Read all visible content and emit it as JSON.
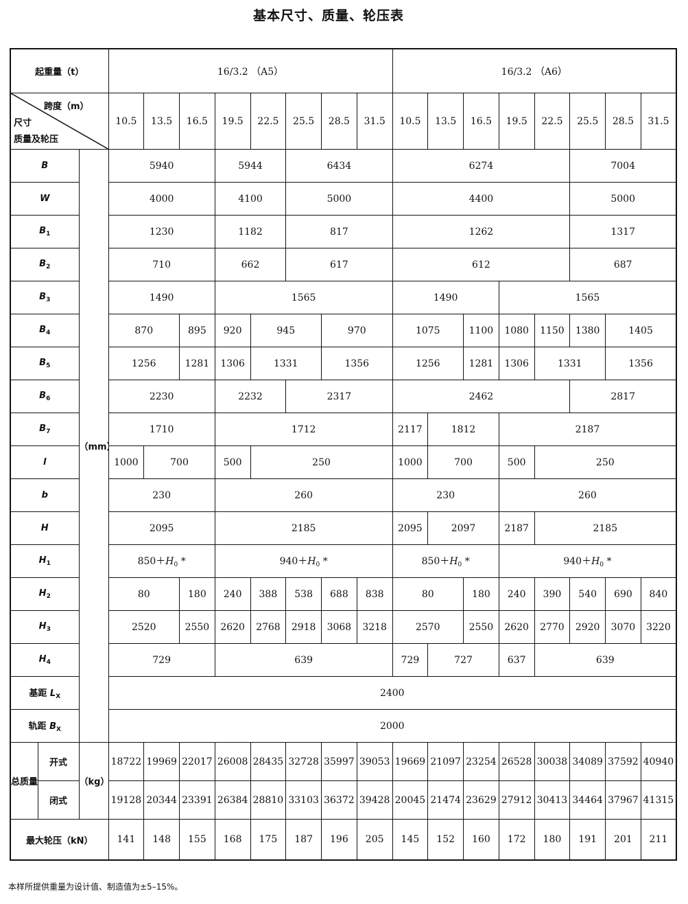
{
  "title": "基本尺寸、质量、轮压表",
  "header": {
    "capacity_label": "起重量（t）",
    "groups": [
      "16/3.2 （A5）",
      "16/3.2 （A6）"
    ],
    "span_label": "跨度（m）",
    "dim_label": "尺寸",
    "mass_label": "质量及轮压",
    "spans": [
      "10.5",
      "13.5",
      "16.5",
      "19.5",
      "22.5",
      "25.5",
      "28.5",
      "31.5",
      "10.5",
      "13.5",
      "16.5",
      "19.5",
      "22.5",
      "25.5",
      "28.5",
      "31.5"
    ]
  },
  "unit_mm": "（mm）",
  "unit_kg": "（kg）",
  "dim_rows": [
    {
      "label": {
        "sym": "B"
      },
      "cells": [
        {
          "v": "5940",
          "span": 3
        },
        {
          "v": "5944",
          "span": 2
        },
        {
          "v": "6434",
          "span": 3
        },
        {
          "v": "6274",
          "span": 5
        },
        {
          "v": "7004",
          "span": 3
        }
      ]
    },
    {
      "label": {
        "sym": "W"
      },
      "cells": [
        {
          "v": "4000",
          "span": 3
        },
        {
          "v": "4100",
          "span": 2
        },
        {
          "v": "5000",
          "span": 3
        },
        {
          "v": "4400",
          "span": 5
        },
        {
          "v": "5000",
          "span": 3
        }
      ]
    },
    {
      "label": {
        "sym": "B",
        "sub": "1"
      },
      "cells": [
        {
          "v": "1230",
          "span": 3
        },
        {
          "v": "1182",
          "span": 2
        },
        {
          "v": "817",
          "span": 3
        },
        {
          "v": "1262",
          "span": 5
        },
        {
          "v": "1317",
          "span": 3
        }
      ]
    },
    {
      "label": {
        "sym": "B",
        "sub": "2"
      },
      "cells": [
        {
          "v": "710",
          "span": 3
        },
        {
          "v": "662",
          "span": 2
        },
        {
          "v": "617",
          "span": 3
        },
        {
          "v": "612",
          "span": 5
        },
        {
          "v": "687",
          "span": 3
        }
      ]
    },
    {
      "label": {
        "sym": "B",
        "sub": "3"
      },
      "cells": [
        {
          "v": "1490",
          "span": 3
        },
        {
          "v": "1565",
          "span": 5
        },
        {
          "v": "1490",
          "span": 3
        },
        {
          "v": "1565",
          "span": 5
        }
      ]
    },
    {
      "label": {
        "sym": "B",
        "sub": "4"
      },
      "cells": [
        {
          "v": "870",
          "span": 2
        },
        {
          "v": "895",
          "span": 1
        },
        {
          "v": "920",
          "span": 1
        },
        {
          "v": "945",
          "span": 2
        },
        {
          "v": "970",
          "span": 2
        },
        {
          "v": "1075",
          "span": 2
        },
        {
          "v": "1100",
          "span": 1
        },
        {
          "v": "1080",
          "span": 1
        },
        {
          "v": "1150",
          "span": 1
        },
        {
          "v": "1380",
          "span": 1
        },
        {
          "v": "1405",
          "span": 2
        }
      ]
    },
    {
      "label": {
        "sym": "B",
        "sub": "5"
      },
      "cells": [
        {
          "v": "1256",
          "span": 2
        },
        {
          "v": "1281",
          "span": 1
        },
        {
          "v": "1306",
          "span": 1
        },
        {
          "v": "1331",
          "span": 2
        },
        {
          "v": "1356",
          "span": 2
        },
        {
          "v": "1256",
          "span": 2
        },
        {
          "v": "1281",
          "span": 1
        },
        {
          "v": "1306",
          "span": 1
        },
        {
          "v": "1331",
          "span": 2
        },
        {
          "v": "1356",
          "span": 2
        }
      ]
    },
    {
      "label": {
        "sym": "B",
        "sub": "6"
      },
      "cells": [
        {
          "v": "2230",
          "span": 3
        },
        {
          "v": "2232",
          "span": 2
        },
        {
          "v": "2317",
          "span": 3
        },
        {
          "v": "2462",
          "span": 5
        },
        {
          "v": "2817",
          "span": 3
        }
      ]
    },
    {
      "label": {
        "sym": "B",
        "sub": "7"
      },
      "cells": [
        {
          "v": "1710",
          "span": 3
        },
        {
          "v": "1712",
          "span": 5
        },
        {
          "v": "2117",
          "span": 1
        },
        {
          "v": "1812",
          "span": 2
        },
        {
          "v": "2187",
          "span": 5
        }
      ]
    },
    {
      "label": {
        "sym": "l"
      },
      "cells": [
        {
          "v": "1000",
          "span": 1
        },
        {
          "v": "700",
          "span": 2
        },
        {
          "v": "500",
          "span": 1
        },
        {
          "v": "250",
          "span": 4
        },
        {
          "v": "1000",
          "span": 1
        },
        {
          "v": "700",
          "span": 2
        },
        {
          "v": "500",
          "span": 1
        },
        {
          "v": "250",
          "span": 4
        }
      ]
    },
    {
      "label": {
        "sym": "b"
      },
      "cells": [
        {
          "v": "230",
          "span": 3
        },
        {
          "v": "260",
          "span": 5
        },
        {
          "v": "230",
          "span": 3
        },
        {
          "v": "260",
          "span": 5
        }
      ]
    },
    {
      "label": {
        "sym": "H"
      },
      "cells": [
        {
          "v": "2095",
          "span": 3
        },
        {
          "v": "2185",
          "span": 5
        },
        {
          "v": "2095",
          "span": 1
        },
        {
          "v": "2097",
          "span": 2
        },
        {
          "v": "2187",
          "span": 1
        },
        {
          "v": "2185",
          "span": 4
        }
      ]
    },
    {
      "label": {
        "sym": "H",
        "sub": "1"
      },
      "cells": [
        {
          "pre": "850＋",
          "sym": "H",
          "sub": "0",
          "post": " *",
          "span": 3
        },
        {
          "pre": "940＋",
          "sym": "H",
          "sub": "0",
          "post": " *",
          "span": 5
        },
        {
          "pre": "850＋",
          "sym": "H",
          "sub": "0",
          "post": " *",
          "span": 3
        },
        {
          "pre": "940＋",
          "sym": "H",
          "sub": "0",
          "post": " *",
          "span": 5
        }
      ]
    },
    {
      "label": {
        "sym": "H",
        "sub": "2"
      },
      "cells": [
        {
          "v": "80",
          "span": 2
        },
        {
          "v": "180",
          "span": 1
        },
        {
          "v": "240",
          "span": 1
        },
        {
          "v": "388",
          "span": 1
        },
        {
          "v": "538",
          "span": 1
        },
        {
          "v": "688",
          "span": 1
        },
        {
          "v": "838",
          "span": 1
        },
        {
          "v": "80",
          "span": 2
        },
        {
          "v": "180",
          "span": 1
        },
        {
          "v": "240",
          "span": 1
        },
        {
          "v": "390",
          "span": 1
        },
        {
          "v": "540",
          "span": 1
        },
        {
          "v": "690",
          "span": 1
        },
        {
          "v": "840",
          "span": 1
        }
      ]
    },
    {
      "label": {
        "sym": "H",
        "sub": "3"
      },
      "cells": [
        {
          "v": "2520",
          "span": 2
        },
        {
          "v": "2550",
          "span": 1
        },
        {
          "v": "2620",
          "span": 1
        },
        {
          "v": "2768",
          "span": 1
        },
        {
          "v": "2918",
          "span": 1
        },
        {
          "v": "3068",
          "span": 1
        },
        {
          "v": "3218",
          "span": 1
        },
        {
          "v": "2570",
          "span": 2
        },
        {
          "v": "2550",
          "span": 1
        },
        {
          "v": "2620",
          "span": 1
        },
        {
          "v": "2770",
          "span": 1
        },
        {
          "v": "2920",
          "span": 1
        },
        {
          "v": "3070",
          "span": 1
        },
        {
          "v": "3220",
          "span": 1
        }
      ]
    },
    {
      "label": {
        "sym": "H",
        "sub": "4"
      },
      "cells": [
        {
          "v": "729",
          "span": 3
        },
        {
          "v": "639",
          "span": 5
        },
        {
          "v": "729",
          "span": 1
        },
        {
          "v": "727",
          "span": 2
        },
        {
          "v": "637",
          "span": 1
        },
        {
          "v": "639",
          "span": 4
        }
      ]
    },
    {
      "label": {
        "text": "基距 ",
        "sym": "L",
        "sub": "X"
      },
      "cells": [
        {
          "v": "2400",
          "span": 16
        }
      ]
    },
    {
      "label": {
        "text": "轨距 ",
        "sym": "B",
        "sub": "X"
      },
      "cells": [
        {
          "v": "2000",
          "span": 16
        }
      ]
    }
  ],
  "total_mass": {
    "label": "总质量",
    "open_label": "开式",
    "closed_label": "闭式",
    "open": [
      "18722",
      "19969",
      "22017",
      "26008",
      "28435",
      "32728",
      "35997",
      "39053",
      "19669",
      "21097",
      "23254",
      "26528",
      "30038",
      "34089",
      "37592",
      "40940"
    ],
    "closed": [
      "19128",
      "20344",
      "23391",
      "26384",
      "28810",
      "33103",
      "36372",
      "39428",
      "20045",
      "21474",
      "23629",
      "27912",
      "30413",
      "34464",
      "37967",
      "41315"
    ]
  },
  "wheel_load": {
    "label": "最大轮压（kN）",
    "values": [
      "141",
      "148",
      "155",
      "168",
      "175",
      "187",
      "196",
      "205",
      "145",
      "152",
      "160",
      "172",
      "180",
      "191",
      "201",
      "211"
    ]
  },
  "note": "本样所提供重量为设计值、制造值为±5–15%。"
}
